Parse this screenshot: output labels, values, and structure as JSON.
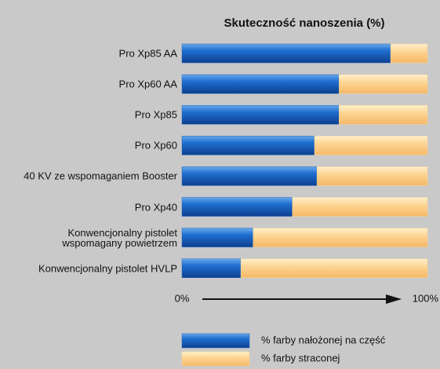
{
  "chart_data": {
    "type": "bar",
    "orientation": "horizontal",
    "stacked": true,
    "title": "Skuteczność nanoszenia (%)",
    "categories": [
      "Pro Xp85 AA",
      "Pro Xp60 AA",
      "Pro Xp85",
      "Pro Xp60",
      "40 KV ze wspomaganiem Booster",
      "Pro Xp40",
      "Konwencjonalny pistolet\nwspomagany powietrzem",
      "Konwencjonalny pistolet HVLP"
    ],
    "series": [
      {
        "name": "% farby nałożonej na część",
        "color": "#1c66c4",
        "values": [
          85,
          64,
          64,
          54,
          55,
          45,
          29,
          24
        ]
      },
      {
        "name": "% farby straconej",
        "color": "#fdd594",
        "values": [
          15,
          36,
          36,
          46,
          45,
          55,
          71,
          76
        ]
      }
    ],
    "xlim": [
      0,
      100
    ],
    "xticks": [
      {
        "value": 0,
        "label": "0%"
      },
      {
        "value": 100,
        "label": "100%"
      }
    ]
  }
}
